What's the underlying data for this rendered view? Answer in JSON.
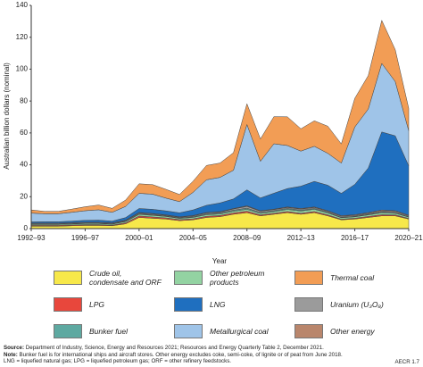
{
  "chart_data": {
    "type": "stacked-area",
    "y_label": "Australian billion dollars (nominal)",
    "x_label": "Year",
    "categories": [
      "1992–93",
      null,
      null,
      null,
      "1996–97",
      null,
      null,
      null,
      "2000–01",
      null,
      null,
      null,
      "2004–05",
      null,
      null,
      null,
      "2008–09",
      null,
      null,
      null,
      "2012–13",
      null,
      null,
      null,
      "2016–17",
      null,
      null,
      null,
      "2020–21"
    ],
    "ylim": [
      0,
      140
    ],
    "yticks": [
      0,
      20,
      40,
      60,
      80,
      100,
      120,
      140
    ],
    "series": [
      {
        "name": "Crude oil, condensate and ORF",
        "color": "#f7e84a",
        "values": [
          1.5,
          1.5,
          1.5,
          1.8,
          2,
          2,
          1.8,
          3,
          7,
          6.5,
          6,
          5,
          5.5,
          7,
          7.5,
          9,
          10,
          8,
          9,
          10,
          9,
          10,
          8,
          5.5,
          6,
          7,
          8,
          8,
          6
        ]
      },
      {
        "name": "LPG",
        "color": "#e8473c",
        "values": [
          0.5,
          0.5,
          0.5,
          0.5,
          0.5,
          0.5,
          0.4,
          0.6,
          0.9,
          0.8,
          0.7,
          0.6,
          0.6,
          0.7,
          0.7,
          0.8,
          0.9,
          0.6,
          0.6,
          0.7,
          0.6,
          0.7,
          0.6,
          0.4,
          0.5,
          0.6,
          0.7,
          0.6,
          0.4
        ]
      },
      {
        "name": "Other petroleum products",
        "color": "#93d3a2",
        "values": [
          0.6,
          0.6,
          0.6,
          0.6,
          0.7,
          0.7,
          0.6,
          0.8,
          1,
          1,
          0.9,
          0.8,
          0.9,
          1,
          1,
          1.1,
          1.2,
          1,
          1.1,
          1.3,
          1.4,
          1.4,
          1.2,
          0.9,
          0.9,
          1,
          1.2,
          1,
          0.8
        ]
      },
      {
        "name": "Bunker fuel",
        "color": "#5ea9a1",
        "values": [
          0.2,
          0.2,
          0.2,
          0.2,
          0.2,
          0.2,
          0.2,
          0.3,
          0.4,
          0.4,
          0.3,
          0.3,
          0.4,
          0.5,
          0.5,
          0.6,
          0.7,
          0.4,
          0.5,
          0.6,
          0.5,
          0.5,
          0.4,
          0.3,
          0.3,
          0.4,
          0.5,
          0.4,
          0.3
        ]
      },
      {
        "name": "Uranium (U₃O₈)",
        "color": "#9b9b9b",
        "values": [
          0.4,
          0.4,
          0.4,
          0.4,
          0.4,
          0.4,
          0.4,
          0.4,
          0.5,
          0.5,
          0.4,
          0.4,
          0.5,
          0.6,
          0.6,
          0.8,
          1.1,
          0.9,
          0.7,
          0.6,
          0.7,
          0.6,
          0.6,
          0.6,
          0.5,
          0.5,
          0.6,
          0.7,
          0.5
        ]
      },
      {
        "name": "Other energy",
        "color": "#b9866c",
        "values": [
          0.2,
          0.2,
          0.2,
          0.2,
          0.2,
          0.2,
          0.2,
          0.2,
          0.3,
          0.3,
          0.3,
          0.3,
          0.3,
          0.3,
          0.3,
          0.3,
          0.4,
          0.3,
          0.3,
          0.4,
          0.4,
          0.4,
          0.4,
          0.4,
          0.5,
          0.5,
          0.6,
          0.5,
          0.4
        ]
      },
      {
        "name": "LNG",
        "color": "#1f6fbf",
        "values": [
          0.8,
          0.9,
          0.9,
          1,
          1.2,
          1.3,
          1.1,
          1.6,
          2.5,
          2.6,
          2.5,
          2.5,
          3.5,
          4.5,
          5.5,
          6,
          10,
          8,
          10,
          11.5,
          14,
          16,
          16,
          14,
          19,
          28,
          49,
          47,
          31
        ]
      },
      {
        "name": "Metallurgical coal",
        "color": "#9fc4e8",
        "values": [
          5.5,
          5,
          5,
          5.5,
          6,
          6.5,
          5.5,
          7,
          9.5,
          9.5,
          8,
          7,
          11,
          16,
          16,
          18,
          41,
          23,
          31,
          27,
          22,
          22,
          20,
          19,
          36,
          37,
          43,
          34,
          22
        ]
      },
      {
        "name": "Thermal coal",
        "color": "#f29d55",
        "values": [
          2,
          1.5,
          1.5,
          2,
          2.5,
          3,
          2.5,
          4,
          6,
          6,
          5.5,
          4.5,
          7,
          9,
          9,
          11,
          13,
          14,
          17,
          18,
          14,
          16,
          17,
          12,
          18,
          21,
          27,
          20,
          14
        ]
      }
    ],
    "legend_order": [
      0,
      2,
      8,
      1,
      6,
      4,
      3,
      7,
      5
    ]
  },
  "footer": {
    "source_label": "Source:",
    "source": "Department of Industry, Science, Energy and Resources 2021; Resources and Energy Quarterly Table 2, December 2021.",
    "note_label": "Note:",
    "note": "Bunker fuel is for international ships and aircraft stores. Other energy excludes coke, semi-coke, of lignite or of peat from June 2018.",
    "abbreviations": "LNG = liquefied natural gas; LPG = liquefied petroleum gas; ORF = other refinery feedstocks.",
    "code": "AECR 1.7"
  }
}
